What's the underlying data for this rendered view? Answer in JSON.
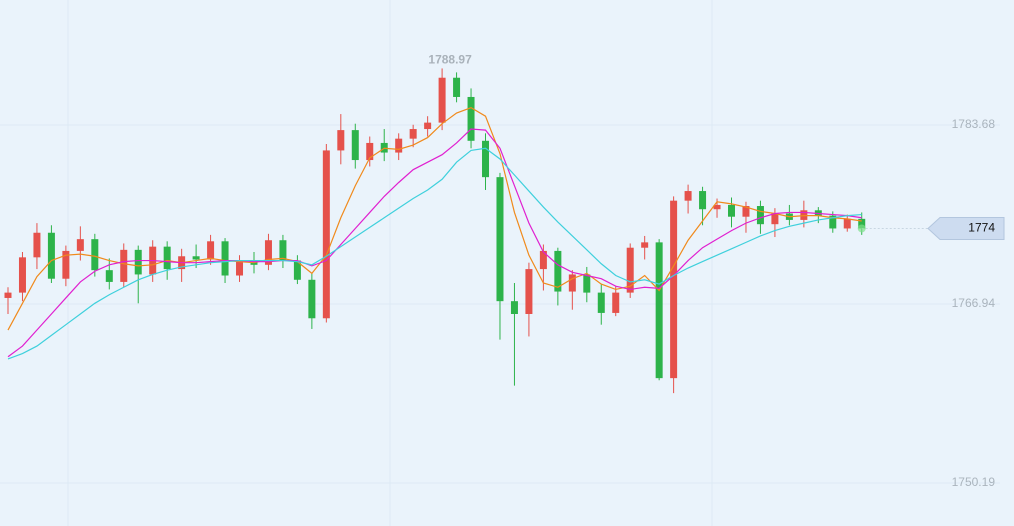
{
  "chart_data": {
    "type": "candlestick",
    "open": [
      1767.5,
      1768.0,
      1771.3,
      1773.6,
      1769.3,
      1771.9,
      1773.0,
      1770.1,
      1769.0,
      1772.0,
      1769.7,
      1772.3,
      1770.2,
      1771.4,
      1771.1,
      1772.8,
      1769.6,
      1771.0,
      1770.6,
      1772.9,
      1771.0,
      1769.2,
      1765.6,
      1781.3,
      1783.2,
      1780.4,
      1782.0,
      1781.1,
      1782.4,
      1783.3,
      1783.9,
      1788.1,
      1786.3,
      1782.2,
      1778.8,
      1767.2,
      1766.0,
      1770.2,
      1771.9,
      1768.1,
      1769.7,
      1768.0,
      1766.1,
      1768.0,
      1772.2,
      1772.7,
      1760.0,
      1776.6,
      1777.5,
      1775.8,
      1776.2,
      1775.1,
      1776.1,
      1774.4,
      1775.4,
      1774.8,
      1775.7,
      1775.2,
      1774.0,
      1774.9
    ],
    "high": [
      1768.5,
      1771.8,
      1774.5,
      1774.3,
      1772.4,
      1774.2,
      1773.5,
      1771.2,
      1772.6,
      1772.4,
      1772.9,
      1772.8,
      1772.1,
      1772.5,
      1773.4,
      1773.1,
      1771.5,
      1771.8,
      1773.5,
      1773.4,
      1771.5,
      1769.8,
      1781.9,
      1784.7,
      1783.8,
      1782.6,
      1783.3,
      1782.9,
      1783.7,
      1784.5,
      1788.97,
      1788.6,
      1787.1,
      1782.9,
      1779.2,
      1768.9,
      1770.8,
      1772.5,
      1772.2,
      1770.1,
      1770.4,
      1768.8,
      1768.6,
      1772.6,
      1773.3,
      1773.0,
      1777.0,
      1778.1,
      1777.9,
      1776.8,
      1776.9,
      1776.5,
      1776.6,
      1775.9,
      1776.2,
      1776.6,
      1776.0,
      1775.6,
      1775.3,
      1775.5
    ],
    "low": [
      1766.0,
      1767.2,
      1770.2,
      1768.9,
      1768.6,
      1771.0,
      1769.5,
      1768.3,
      1768.5,
      1767.0,
      1769.0,
      1769.2,
      1769.0,
      1770.3,
      1770.6,
      1768.9,
      1769.0,
      1769.8,
      1770.1,
      1770.3,
      1768.8,
      1764.6,
      1765.2,
      1780.0,
      1779.6,
      1779.8,
      1780.3,
      1780.4,
      1781.6,
      1782.6,
      1783.2,
      1785.8,
      1781.5,
      1777.6,
      1763.6,
      1759.3,
      1763.9,
      1768.2,
      1766.8,
      1766.4,
      1767.1,
      1765.0,
      1765.8,
      1767.5,
      1771.1,
      1759.8,
      1758.6,
      1775.4,
      1774.3,
      1775.0,
      1774.1,
      1773.6,
      1773.5,
      1773.2,
      1774.3,
      1774.1,
      1774.5,
      1773.6,
      1773.7,
      1773.4
    ],
    "close": [
      1768.0,
      1771.3,
      1773.6,
      1769.3,
      1771.9,
      1773.0,
      1770.1,
      1769.0,
      1772.0,
      1769.7,
      1772.3,
      1770.2,
      1771.4,
      1771.1,
      1772.8,
      1769.6,
      1771.0,
      1770.6,
      1772.9,
      1771.0,
      1769.2,
      1765.6,
      1781.3,
      1783.2,
      1780.4,
      1782.0,
      1781.1,
      1782.4,
      1783.3,
      1783.9,
      1788.1,
      1786.3,
      1782.2,
      1778.8,
      1767.2,
      1766.0,
      1770.2,
      1771.9,
      1768.1,
      1769.7,
      1768.0,
      1766.1,
      1768.0,
      1772.2,
      1772.7,
      1760.0,
      1776.6,
      1777.5,
      1775.8,
      1776.2,
      1775.1,
      1776.1,
      1774.4,
      1775.4,
      1774.8,
      1775.7,
      1775.2,
      1774.0,
      1774.9,
      1774
    ],
    "up_color": "#e5514b",
    "down_color": "#2db34a",
    "series": [
      {
        "color": "#f08a1c",
        "values": [
          1764.5,
          1767.0,
          1769.5,
          1771.0,
          1771.5,
          1771.6,
          1771.4,
          1771.0,
          1770.7,
          1770.5,
          1770.6,
          1771.0,
          1770.8,
          1771.0,
          1771.2,
          1771.0,
          1770.9,
          1770.8,
          1771.1,
          1771.2,
          1770.9,
          1769.8,
          1771.5,
          1775.0,
          1778.0,
          1780.6,
          1781.5,
          1781.4,
          1781.8,
          1782.5,
          1783.8,
          1784.8,
          1785.3,
          1784.5,
          1781.0,
          1775.5,
          1771.5,
          1768.9,
          1768.5,
          1769.3,
          1769.8,
          1768.8,
          1768.3,
          1768.6,
          1769.6,
          1768.2,
          1770.5,
          1772.9,
          1774.7,
          1776.5,
          1776.3,
          1776.0,
          1775.6,
          1775.4,
          1775.1,
          1775.2,
          1775.2,
          1775.0,
          1774.9,
          1774.7
        ]
      },
      {
        "color": "#e020d0",
        "values": [
          1762.0,
          1763.0,
          1764.5,
          1766.0,
          1767.5,
          1769.0,
          1770.0,
          1770.6,
          1770.9,
          1771.0,
          1771.0,
          1770.9,
          1770.8,
          1770.8,
          1770.9,
          1771.0,
          1771.0,
          1770.9,
          1770.9,
          1771.0,
          1771.0,
          1770.5,
          1771.0,
          1772.5,
          1774.0,
          1775.5,
          1777.0,
          1778.3,
          1779.5,
          1780.2,
          1780.9,
          1782.0,
          1783.3,
          1783.2,
          1781.5,
          1778.0,
          1774.5,
          1771.8,
          1770.6,
          1769.9,
          1769.6,
          1769.3,
          1768.6,
          1768.3,
          1768.5,
          1768.4,
          1769.6,
          1771.0,
          1772.2,
          1773.0,
          1773.8,
          1774.5,
          1775.0,
          1775.4,
          1775.5,
          1775.5,
          1775.4,
          1775.3,
          1775.2,
          1775.0
        ]
      },
      {
        "color": "#3fd0dc",
        "values": [
          1761.8,
          1762.3,
          1763.0,
          1764.0,
          1765.0,
          1766.0,
          1767.0,
          1767.8,
          1768.5,
          1769.2,
          1769.7,
          1770.1,
          1770.4,
          1770.6,
          1770.8,
          1770.9,
          1771.0,
          1771.0,
          1771.0,
          1771.0,
          1770.9,
          1770.6,
          1771.4,
          1772.3,
          1773.2,
          1774.1,
          1775.0,
          1775.9,
          1776.8,
          1777.6,
          1778.6,
          1780.2,
          1781.3,
          1781.5,
          1780.5,
          1779.0,
          1777.5,
          1776.0,
          1774.6,
          1773.3,
          1772.0,
          1770.7,
          1769.6,
          1769.0,
          1769.2,
          1768.8,
          1769.6,
          1770.3,
          1770.9,
          1771.5,
          1772.1,
          1772.7,
          1773.3,
          1773.8,
          1774.2,
          1774.5,
          1774.8,
          1775.0,
          1775.2,
          1775.3
        ]
      }
    ],
    "ylim": [
      1746.17,
      1795.37
    ],
    "yticks": [
      1750.19,
      1766.94,
      1783.68
    ],
    "grid": true
  }
}
